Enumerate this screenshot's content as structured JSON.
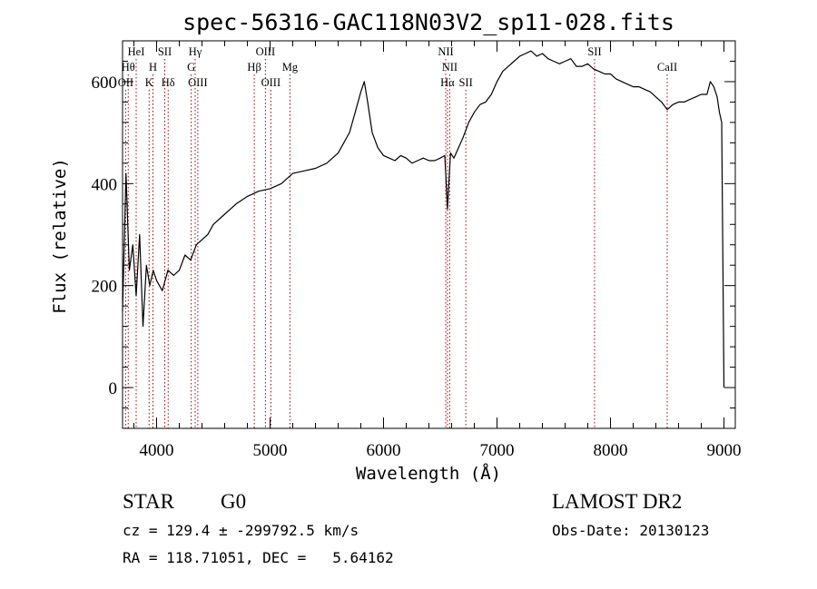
{
  "header": {
    "title": "spec-56316-GAC118N03V2_sp11-028.fits"
  },
  "info": {
    "class_label": "STAR",
    "subclass": "G0",
    "survey": "LAMOST DR2",
    "cz_text": "cz = 129.4 ± -299792.5 km/s",
    "obs_date_text": "Obs-Date: 20130123",
    "radec_text": "RA = 118.71051, DEC =   5.64162"
  },
  "chart_data": {
    "type": "line",
    "title": "spec-56316-GAC118N03V2_sp11-028.fits",
    "xlabel": "Wavelength (Å)",
    "ylabel": "Flux (relative)",
    "xlim": [
      3700,
      9100
    ],
    "ylim": [
      -80,
      680
    ],
    "x_ticks": [
      4000,
      5000,
      6000,
      7000,
      8000,
      9000
    ],
    "y_ticks": [
      0,
      200,
      400,
      600
    ],
    "grid": false,
    "series": [
      {
        "x": [
          3700,
          3730,
          3760,
          3790,
          3820,
          3850,
          3880,
          3910,
          3940,
          3970,
          4000,
          4050,
          4100,
          4150,
          4200,
          4250,
          4300,
          4350,
          4400,
          4450,
          4500,
          4600,
          4700,
          4800,
          4900,
          5000,
          5100,
          5200,
          5300,
          5400,
          5500,
          5600,
          5700,
          5750,
          5800,
          5830,
          5860,
          5900,
          5950,
          6000,
          6050,
          6100,
          6150,
          6200,
          6250,
          6300,
          6350,
          6400,
          6450,
          6500,
          6540,
          6563,
          6590,
          6620,
          6660,
          6700,
          6750,
          6800,
          6850,
          6900,
          6950,
          7000,
          7050,
          7100,
          7150,
          7200,
          7250,
          7300,
          7350,
          7400,
          7450,
          7500,
          7550,
          7600,
          7650,
          7700,
          7750,
          7800,
          7850,
          7900,
          7950,
          8000,
          8050,
          8100,
          8150,
          8200,
          8250,
          8300,
          8350,
          8400,
          8450,
          8500,
          8550,
          8600,
          8650,
          8700,
          8750,
          8800,
          8850,
          8880,
          8910,
          8940,
          8960,
          8980,
          9000
        ],
        "y": [
          150,
          420,
          230,
          280,
          180,
          300,
          120,
          240,
          200,
          230,
          210,
          190,
          230,
          220,
          230,
          260,
          250,
          280,
          290,
          300,
          320,
          340,
          360,
          375,
          385,
          390,
          400,
          420,
          425,
          430,
          440,
          460,
          500,
          540,
          580,
          600,
          560,
          500,
          470,
          455,
          450,
          445,
          455,
          450,
          440,
          445,
          450,
          445,
          445,
          450,
          455,
          350,
          460,
          450,
          470,
          490,
          520,
          540,
          555,
          560,
          575,
          600,
          620,
          630,
          640,
          650,
          655,
          660,
          650,
          655,
          645,
          640,
          635,
          640,
          645,
          630,
          630,
          635,
          625,
          620,
          615,
          615,
          605,
          600,
          595,
          590,
          590,
          585,
          580,
          570,
          560,
          545,
          555,
          560,
          560,
          565,
          570,
          575,
          575,
          600,
          590,
          570,
          540,
          520,
          0
        ]
      }
    ],
    "line_markers": [
      {
        "label": "Hθ",
        "x": 3750,
        "row": 1
      },
      {
        "label": "OII",
        "x": 3727,
        "row": 2
      },
      {
        "label": "HeI",
        "x": 3820,
        "row": 0
      },
      {
        "label": "H",
        "x": 3968,
        "row": 1
      },
      {
        "label": "K",
        "x": 3934,
        "row": 2
      },
      {
        "label": "SII",
        "x": 4072,
        "row": 0
      },
      {
        "label": "Hδ",
        "x": 4102,
        "row": 2
      },
      {
        "label": "Hγ",
        "x": 4340,
        "row": 0
      },
      {
        "label": "G",
        "x": 4305,
        "row": 1
      },
      {
        "label": "OIII",
        "x": 4363,
        "row": 2
      },
      {
        "label": "OIII",
        "x": 4959,
        "row": 0
      },
      {
        "label": "Hβ",
        "x": 4861,
        "row": 1
      },
      {
        "label": "OIII",
        "x": 5007,
        "row": 2
      },
      {
        "label": "Mg",
        "x": 5175,
        "row": 1
      },
      {
        "label": "NII",
        "x": 6548,
        "row": 0
      },
      {
        "label": "NII",
        "x": 6583,
        "row": 1
      },
      {
        "label": "Hα",
        "x": 6563,
        "row": 2
      },
      {
        "label": "SII",
        "x": 6725,
        "row": 2
      },
      {
        "label": "SII",
        "x": 7860,
        "row": 0
      },
      {
        "label": "CaII",
        "x": 8500,
        "row": 1
      }
    ]
  }
}
